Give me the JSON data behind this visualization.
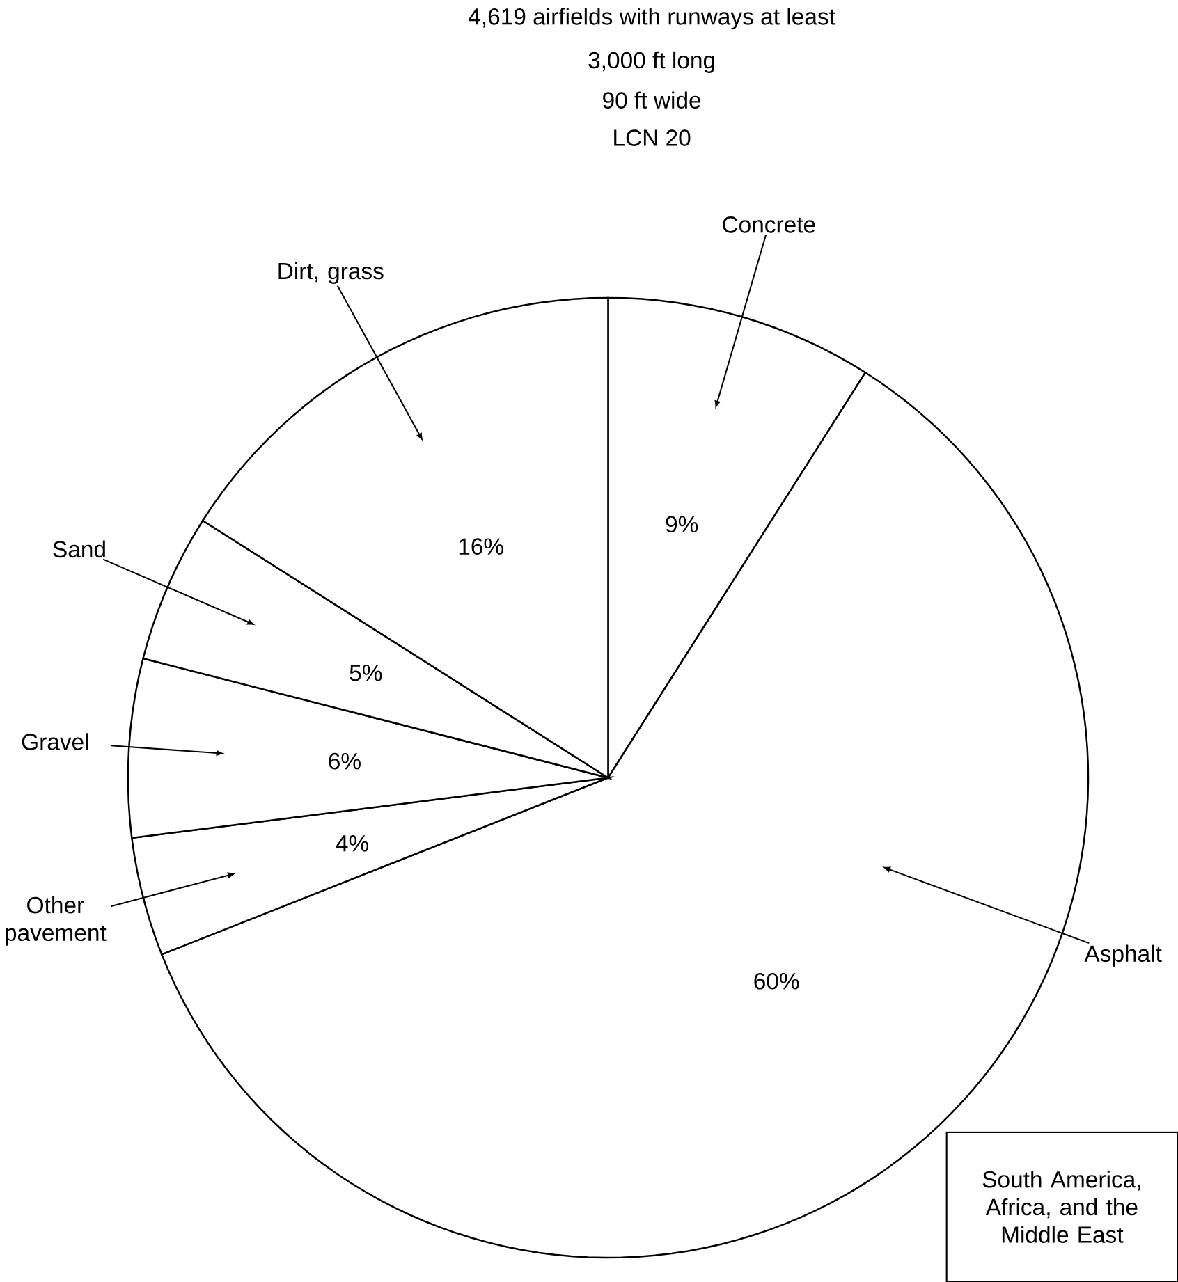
{
  "chart_data": {
    "type": "pie",
    "title": "4,619 airfields with runways at least",
    "annotations": [
      "3,000 ft long",
      "90 ft wide",
      "LCN 20",
      "South America, Africa, and the Middle East"
    ],
    "categories": [
      "Concrete",
      "Asphalt",
      "Other pavement",
      "Gravel",
      "Sand",
      "Dirt, grass"
    ],
    "values": [
      9,
      60,
      4,
      6,
      5,
      16
    ],
    "value_labels": [
      "9%",
      "60%",
      "4%",
      "6%",
      "5%",
      "16%"
    ],
    "colors": [
      "#ffffff",
      "#ffffff",
      "#ffffff",
      "#ffffff",
      "#ffffff",
      "#ffffff"
    ]
  }
}
